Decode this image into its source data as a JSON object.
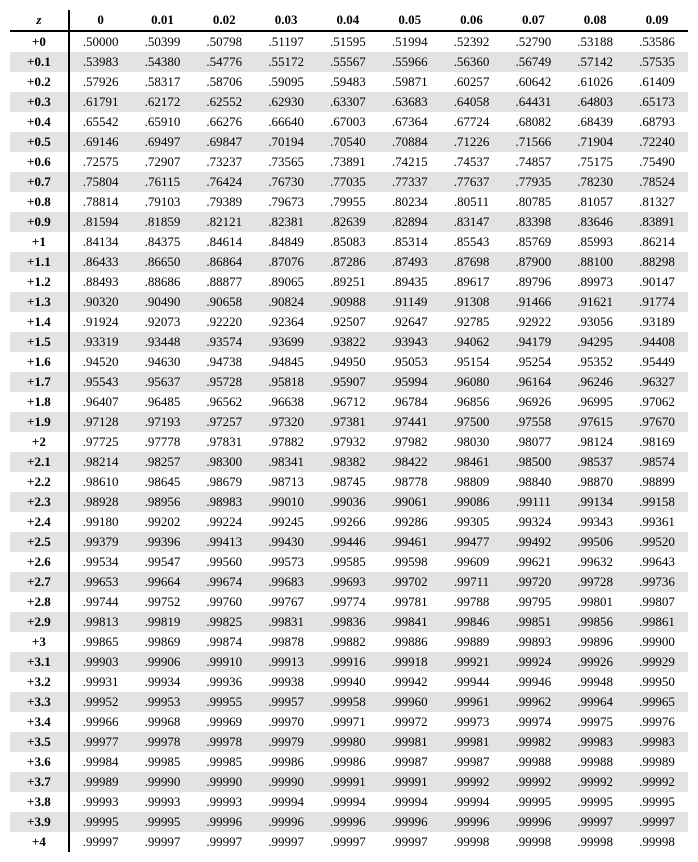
{
  "header": {
    "z": "z"
  },
  "columns": [
    "0",
    "0.01",
    "0.02",
    "0.03",
    "0.04",
    "0.05",
    "0.06",
    "0.07",
    "0.08",
    "0.09"
  ],
  "rows": [
    {
      "z": "+0",
      "v": [
        ".50000",
        ".50399",
        ".50798",
        ".51197",
        ".51595",
        ".51994",
        ".52392",
        ".52790",
        ".53188",
        ".53586"
      ]
    },
    {
      "z": "+0.1",
      "v": [
        ".53983",
        ".54380",
        ".54776",
        ".55172",
        ".55567",
        ".55966",
        ".56360",
        ".56749",
        ".57142",
        ".57535"
      ]
    },
    {
      "z": "+0.2",
      "v": [
        ".57926",
        ".58317",
        ".58706",
        ".59095",
        ".59483",
        ".59871",
        ".60257",
        ".60642",
        ".61026",
        ".61409"
      ]
    },
    {
      "z": "+0.3",
      "v": [
        ".61791",
        ".62172",
        ".62552",
        ".62930",
        ".63307",
        ".63683",
        ".64058",
        ".64431",
        ".64803",
        ".65173"
      ]
    },
    {
      "z": "+0.4",
      "v": [
        ".65542",
        ".65910",
        ".66276",
        ".66640",
        ".67003",
        ".67364",
        ".67724",
        ".68082",
        ".68439",
        ".68793"
      ]
    },
    {
      "z": "+0.5",
      "v": [
        ".69146",
        ".69497",
        ".69847",
        ".70194",
        ".70540",
        ".70884",
        ".71226",
        ".71566",
        ".71904",
        ".72240"
      ]
    },
    {
      "z": "+0.6",
      "v": [
        ".72575",
        ".72907",
        ".73237",
        ".73565",
        ".73891",
        ".74215",
        ".74537",
        ".74857",
        ".75175",
        ".75490"
      ]
    },
    {
      "z": "+0.7",
      "v": [
        ".75804",
        ".76115",
        ".76424",
        ".76730",
        ".77035",
        ".77337",
        ".77637",
        ".77935",
        ".78230",
        ".78524"
      ]
    },
    {
      "z": "+0.8",
      "v": [
        ".78814",
        ".79103",
        ".79389",
        ".79673",
        ".79955",
        ".80234",
        ".80511",
        ".80785",
        ".81057",
        ".81327"
      ]
    },
    {
      "z": "+0.9",
      "v": [
        ".81594",
        ".81859",
        ".82121",
        ".82381",
        ".82639",
        ".82894",
        ".83147",
        ".83398",
        ".83646",
        ".83891"
      ]
    },
    {
      "z": "+1",
      "v": [
        ".84134",
        ".84375",
        ".84614",
        ".84849",
        ".85083",
        ".85314",
        ".85543",
        ".85769",
        ".85993",
        ".86214"
      ]
    },
    {
      "z": "+1.1",
      "v": [
        ".86433",
        ".86650",
        ".86864",
        ".87076",
        ".87286",
        ".87493",
        ".87698",
        ".87900",
        ".88100",
        ".88298"
      ]
    },
    {
      "z": "+1.2",
      "v": [
        ".88493",
        ".88686",
        ".88877",
        ".89065",
        ".89251",
        ".89435",
        ".89617",
        ".89796",
        ".89973",
        ".90147"
      ]
    },
    {
      "z": "+1.3",
      "v": [
        ".90320",
        ".90490",
        ".90658",
        ".90824",
        ".90988",
        ".91149",
        ".91308",
        ".91466",
        ".91621",
        ".91774"
      ]
    },
    {
      "z": "+1.4",
      "v": [
        ".91924",
        ".92073",
        ".92220",
        ".92364",
        ".92507",
        ".92647",
        ".92785",
        ".92922",
        ".93056",
        ".93189"
      ]
    },
    {
      "z": "+1.5",
      "v": [
        ".93319",
        ".93448",
        ".93574",
        ".93699",
        ".93822",
        ".93943",
        ".94062",
        ".94179",
        ".94295",
        ".94408"
      ]
    },
    {
      "z": "+1.6",
      "v": [
        ".94520",
        ".94630",
        ".94738",
        ".94845",
        ".94950",
        ".95053",
        ".95154",
        ".95254",
        ".95352",
        ".95449"
      ]
    },
    {
      "z": "+1.7",
      "v": [
        ".95543",
        ".95637",
        ".95728",
        ".95818",
        ".95907",
        ".95994",
        ".96080",
        ".96164",
        ".96246",
        ".96327"
      ]
    },
    {
      "z": "+1.8",
      "v": [
        ".96407",
        ".96485",
        ".96562",
        ".96638",
        ".96712",
        ".96784",
        ".96856",
        ".96926",
        ".96995",
        ".97062"
      ]
    },
    {
      "z": "+1.9",
      "v": [
        ".97128",
        ".97193",
        ".97257",
        ".97320",
        ".97381",
        ".97441",
        ".97500",
        ".97558",
        ".97615",
        ".97670"
      ]
    },
    {
      "z": "+2",
      "v": [
        ".97725",
        ".97778",
        ".97831",
        ".97882",
        ".97932",
        ".97982",
        ".98030",
        ".98077",
        ".98124",
        ".98169"
      ]
    },
    {
      "z": "+2.1",
      "v": [
        ".98214",
        ".98257",
        ".98300",
        ".98341",
        ".98382",
        ".98422",
        ".98461",
        ".98500",
        ".98537",
        ".98574"
      ]
    },
    {
      "z": "+2.2",
      "v": [
        ".98610",
        ".98645",
        ".98679",
        ".98713",
        ".98745",
        ".98778",
        ".98809",
        ".98840",
        ".98870",
        ".98899"
      ]
    },
    {
      "z": "+2.3",
      "v": [
        ".98928",
        ".98956",
        ".98983",
        ".99010",
        ".99036",
        ".99061",
        ".99086",
        ".99111",
        ".99134",
        ".99158"
      ]
    },
    {
      "z": "+2.4",
      "v": [
        ".99180",
        ".99202",
        ".99224",
        ".99245",
        ".99266",
        ".99286",
        ".99305",
        ".99324",
        ".99343",
        ".99361"
      ]
    },
    {
      "z": "+2.5",
      "v": [
        ".99379",
        ".99396",
        ".99413",
        ".99430",
        ".99446",
        ".99461",
        ".99477",
        ".99492",
        ".99506",
        ".99520"
      ]
    },
    {
      "z": "+2.6",
      "v": [
        ".99534",
        ".99547",
        ".99560",
        ".99573",
        ".99585",
        ".99598",
        ".99609",
        ".99621",
        ".99632",
        ".99643"
      ]
    },
    {
      "z": "+2.7",
      "v": [
        ".99653",
        ".99664",
        ".99674",
        ".99683",
        ".99693",
        ".99702",
        ".99711",
        ".99720",
        ".99728",
        ".99736"
      ]
    },
    {
      "z": "+2.8",
      "v": [
        ".99744",
        ".99752",
        ".99760",
        ".99767",
        ".99774",
        ".99781",
        ".99788",
        ".99795",
        ".99801",
        ".99807"
      ]
    },
    {
      "z": "+2.9",
      "v": [
        ".99813",
        ".99819",
        ".99825",
        ".99831",
        ".99836",
        ".99841",
        ".99846",
        ".99851",
        ".99856",
        ".99861"
      ]
    },
    {
      "z": "+3",
      "v": [
        ".99865",
        ".99869",
        ".99874",
        ".99878",
        ".99882",
        ".99886",
        ".99889",
        ".99893",
        ".99896",
        ".99900"
      ]
    },
    {
      "z": "+3.1",
      "v": [
        ".99903",
        ".99906",
        ".99910",
        ".99913",
        ".99916",
        ".99918",
        ".99921",
        ".99924",
        ".99926",
        ".99929"
      ]
    },
    {
      "z": "+3.2",
      "v": [
        ".99931",
        ".99934",
        ".99936",
        ".99938",
        ".99940",
        ".99942",
        ".99944",
        ".99946",
        ".99948",
        ".99950"
      ]
    },
    {
      "z": "+3.3",
      "v": [
        ".99952",
        ".99953",
        ".99955",
        ".99957",
        ".99958",
        ".99960",
        ".99961",
        ".99962",
        ".99964",
        ".99965"
      ]
    },
    {
      "z": "+3.4",
      "v": [
        ".99966",
        ".99968",
        ".99969",
        ".99970",
        ".99971",
        ".99972",
        ".99973",
        ".99974",
        ".99975",
        ".99976"
      ]
    },
    {
      "z": "+3.5",
      "v": [
        ".99977",
        ".99978",
        ".99978",
        ".99979",
        ".99980",
        ".99981",
        ".99981",
        ".99982",
        ".99983",
        ".99983"
      ]
    },
    {
      "z": "+3.6",
      "v": [
        ".99984",
        ".99985",
        ".99985",
        ".99986",
        ".99986",
        ".99987",
        ".99987",
        ".99988",
        ".99988",
        ".99989"
      ]
    },
    {
      "z": "+3.7",
      "v": [
        ".99989",
        ".99990",
        ".99990",
        ".99990",
        ".99991",
        ".99991",
        ".99992",
        ".99992",
        ".99992",
        ".99992"
      ]
    },
    {
      "z": "+3.8",
      "v": [
        ".99993",
        ".99993",
        ".99993",
        ".99994",
        ".99994",
        ".99994",
        ".99994",
        ".99995",
        ".99995",
        ".99995"
      ]
    },
    {
      "z": "+3.9",
      "v": [
        ".99995",
        ".99995",
        ".99996",
        ".99996",
        ".99996",
        ".99996",
        ".99996",
        ".99996",
        ".99997",
        ".99997"
      ]
    },
    {
      "z": "+4",
      "v": [
        ".99997",
        ".99997",
        ".99997",
        ".99997",
        ".99997",
        ".99997",
        ".99998",
        ".99998",
        ".99998",
        ".99998"
      ]
    }
  ],
  "style": {
    "stripe_color": "#e3e3e3",
    "border_color": "#000000",
    "font_family": "Times New Roman"
  }
}
